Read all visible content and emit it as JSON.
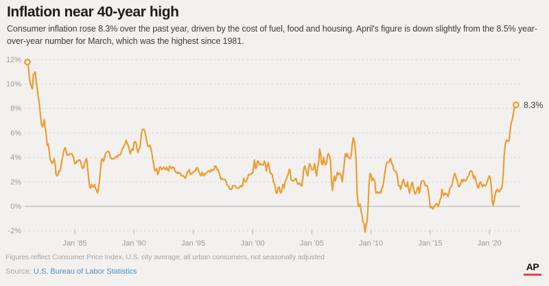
{
  "page": {
    "background": "#f2f1ef"
  },
  "header": {
    "title": "Inflation near 40-year high",
    "subtitle": "Consumer inflation rose 8.3% over the past year, driven by the cost of fuel, food and housing. April's figure is down slightly from the 8.5% year-over-year number for March, which was the highest since 1981."
  },
  "footer": {
    "note": "Figures reflect Consumer Price Index, U.S. city average, all urban consumers, not seasonally adjusted",
    "source_label": "Source:",
    "source_link": "U.S. Bureau of Labor Statistics",
    "logo": "AP"
  },
  "chart_data": {
    "type": "line",
    "title": "Inflation near 40-year high",
    "series_name": "Consumer Price Index, year-over-year % change",
    "frequency": "monthly",
    "x_start": "Jan 1981",
    "x_end": "Apr 2022",
    "unit": "%",
    "ylim": [
      -2.8,
      12.6
    ],
    "grid": "dotted horizontal gridlines, solid zero line",
    "legend_position": "none",
    "line_color": "#ed9c2f",
    "zero_line_color": "#b3b0ab",
    "grid_color": "#c9c6c1",
    "end_label": "8.3%",
    "start_value": 11.8,
    "end_value": 8.3,
    "y_ticks": [
      12,
      10,
      8,
      6,
      4,
      2,
      0,
      -2
    ],
    "y_tick_labels": [
      "12%",
      "10%",
      "8%",
      "6%",
      "4%",
      "2%",
      "0%",
      "-2%"
    ],
    "x_tick_labels": [
      "Jan '85",
      "Jan '90",
      "Jan '95",
      "Jan '00",
      "Jan '05",
      "Jan '10",
      "Jan '15",
      "Jan '20"
    ],
    "x_tick_month_index": [
      48,
      108,
      168,
      228,
      288,
      348,
      408,
      468
    ],
    "values_by_year": {
      "1981": [
        11.8,
        11.4,
        10.5,
        10.0,
        9.8,
        9.6,
        10.8,
        10.8,
        11.0,
        10.1,
        9.6,
        8.9
      ],
      "1982": [
        8.4,
        7.6,
        6.8,
        6.5,
        6.7,
        7.1,
        6.4,
        5.9,
        5.0,
        5.1,
        4.6,
        3.8
      ],
      "1983": [
        3.7,
        3.5,
        3.6,
        3.9,
        3.5,
        2.6,
        2.5,
        2.6,
        2.9,
        2.9,
        3.3,
        3.8
      ],
      "1984": [
        4.2,
        4.6,
        4.8,
        4.6,
        4.2,
        4.2,
        4.2,
        4.3,
        4.3,
        4.3,
        4.1,
        3.9
      ],
      "1985": [
        3.5,
        3.5,
        3.7,
        3.7,
        3.8,
        3.8,
        3.6,
        3.3,
        3.1,
        3.2,
        3.5,
        3.8
      ],
      "1986": [
        3.9,
        3.1,
        2.3,
        1.6,
        1.5,
        1.8,
        1.6,
        1.6,
        1.8,
        1.5,
        1.3,
        1.1
      ],
      "1987": [
        1.5,
        2.1,
        3.0,
        3.8,
        3.9,
        3.7,
        3.9,
        4.3,
        4.4,
        4.5,
        4.5,
        4.4
      ],
      "1988": [
        4.0,
        3.9,
        3.9,
        3.9,
        3.9,
        4.0,
        4.1,
        4.0,
        4.2,
        4.2,
        4.2,
        4.4
      ],
      "1989": [
        4.7,
        4.8,
        5.0,
        5.1,
        5.4,
        5.2,
        5.0,
        4.7,
        4.3,
        4.5,
        4.7,
        4.6
      ],
      "1990": [
        5.2,
        5.3,
        5.2,
        4.7,
        4.4,
        4.7,
        4.8,
        5.6,
        6.2,
        6.3,
        6.3,
        6.1
      ],
      "1991": [
        5.7,
        5.3,
        4.9,
        4.9,
        5.0,
        4.7,
        4.4,
        3.8,
        3.4,
        2.9,
        3.0,
        3.1
      ],
      "1992": [
        2.6,
        2.8,
        3.2,
        3.2,
        3.0,
        3.1,
        3.2,
        3.1,
        3.0,
        3.2,
        3.0,
        2.9
      ],
      "1993": [
        3.3,
        3.2,
        3.1,
        3.2,
        3.2,
        3.0,
        2.8,
        2.8,
        2.7,
        2.8,
        2.7,
        2.7
      ],
      "1994": [
        2.5,
        2.5,
        2.5,
        2.4,
        2.3,
        2.5,
        2.8,
        2.9,
        3.0,
        2.6,
        2.7,
        2.7
      ],
      "1995": [
        2.8,
        2.9,
        2.9,
        3.1,
        3.2,
        3.0,
        2.8,
        2.6,
        2.5,
        2.8,
        2.6,
        2.5
      ],
      "1996": [
        2.7,
        2.7,
        2.8,
        2.9,
        2.9,
        2.8,
        3.0,
        2.9,
        3.0,
        3.0,
        3.3,
        3.3
      ],
      "1997": [
        3.0,
        3.0,
        2.8,
        2.5,
        2.2,
        2.3,
        2.2,
        2.2,
        2.2,
        2.1,
        1.8,
        1.7
      ],
      "1998": [
        1.6,
        1.4,
        1.4,
        1.4,
        1.7,
        1.7,
        1.7,
        1.6,
        1.5,
        1.5,
        1.5,
        1.6
      ],
      "1999": [
        1.7,
        1.6,
        1.7,
        2.3,
        2.1,
        2.0,
        2.1,
        2.3,
        2.6,
        2.6,
        2.6,
        2.7
      ],
      "2000": [
        2.7,
        3.2,
        3.8,
        3.1,
        3.2,
        3.7,
        3.7,
        3.4,
        3.5,
        3.4,
        3.4,
        3.4
      ],
      "2001": [
        3.7,
        3.5,
        2.9,
        3.3,
        3.6,
        3.2,
        2.7,
        2.7,
        2.6,
        2.1,
        1.9,
        1.6
      ],
      "2002": [
        1.1,
        1.1,
        1.5,
        1.6,
        1.2,
        1.1,
        1.5,
        1.8,
        1.5,
        2.0,
        2.2,
        2.4
      ],
      "2003": [
        2.6,
        3.0,
        3.0,
        2.2,
        2.1,
        2.1,
        2.1,
        2.2,
        2.3,
        2.0,
        1.8,
        1.9
      ],
      "2004": [
        1.9,
        1.7,
        1.7,
        2.3,
        3.1,
        3.3,
        3.0,
        2.7,
        2.5,
        3.2,
        3.5,
        3.3
      ],
      "2005": [
        3.0,
        3.0,
        3.1,
        3.5,
        2.8,
        2.5,
        3.2,
        3.6,
        4.7,
        4.3,
        3.5,
        3.4
      ],
      "2006": [
        4.0,
        3.6,
        3.4,
        3.5,
        4.2,
        4.3,
        4.1,
        3.8,
        2.1,
        1.3,
        2.0,
        2.5
      ],
      "2007": [
        2.1,
        2.4,
        2.8,
        2.6,
        2.7,
        2.7,
        2.4,
        2.0,
        2.8,
        3.5,
        4.3,
        4.1
      ],
      "2008": [
        4.3,
        4.0,
        4.0,
        3.9,
        4.2,
        5.0,
        5.6,
        5.4,
        4.9,
        3.7,
        1.1,
        0.1
      ],
      "2009": [
        0.0,
        0.2,
        -0.4,
        -0.7,
        -1.3,
        -1.4,
        -2.1,
        -1.5,
        -1.3,
        -0.2,
        1.8,
        2.7
      ],
      "2010": [
        2.6,
        2.1,
        2.3,
        2.2,
        2.0,
        1.1,
        1.2,
        1.1,
        1.1,
        1.2,
        1.1,
        1.5
      ],
      "2011": [
        1.6,
        2.1,
        2.7,
        3.2,
        3.6,
        3.6,
        3.6,
        3.8,
        3.9,
        3.5,
        3.4,
        3.0
      ],
      "2012": [
        2.9,
        2.9,
        2.7,
        2.3,
        1.7,
        1.7,
        1.4,
        1.7,
        2.0,
        2.2,
        1.8,
        1.7
      ],
      "2013": [
        1.6,
        2.0,
        1.5,
        1.1,
        1.4,
        1.8,
        2.0,
        1.5,
        1.2,
        1.0,
        1.2,
        1.5
      ],
      "2014": [
        1.6,
        1.1,
        1.5,
        2.0,
        2.1,
        2.1,
        2.0,
        1.7,
        1.7,
        1.7,
        1.3,
        0.8
      ],
      "2015": [
        -0.1,
        0.0,
        -0.1,
        -0.2,
        0.0,
        0.1,
        0.2,
        0.2,
        0.0,
        0.2,
        0.5,
        0.7
      ],
      "2016": [
        1.4,
        1.0,
        0.9,
        1.1,
        1.0,
        1.0,
        0.8,
        1.1,
        1.5,
        1.6,
        1.7,
        2.1
      ],
      "2017": [
        2.5,
        2.7,
        2.4,
        2.2,
        1.9,
        1.6,
        1.7,
        1.9,
        2.2,
        2.0,
        2.2,
        2.1
      ],
      "2018": [
        2.1,
        2.2,
        2.4,
        2.5,
        2.8,
        2.9,
        2.9,
        2.7,
        2.3,
        2.5,
        2.2,
        1.9
      ],
      "2019": [
        1.6,
        1.5,
        1.9,
        2.0,
        1.8,
        1.6,
        1.8,
        1.7,
        1.7,
        1.8,
        2.1,
        2.3
      ],
      "2020": [
        2.5,
        2.3,
        1.5,
        0.3,
        0.1,
        0.6,
        1.0,
        1.3,
        1.4,
        1.2,
        1.2,
        1.4
      ],
      "2021": [
        1.4,
        1.7,
        2.6,
        4.2,
        5.0,
        5.4,
        5.4,
        5.3,
        5.4,
        6.2,
        6.8,
        7.0
      ],
      "2022": [
        7.5,
        7.9,
        8.5,
        8.3
      ]
    }
  }
}
